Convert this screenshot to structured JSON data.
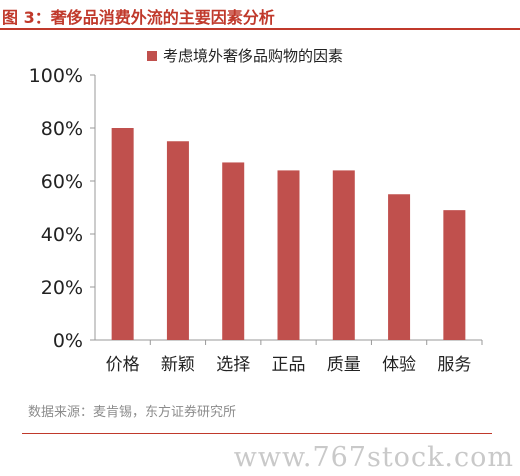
{
  "header": {
    "title": "图 3：奢侈品消费外流的主要因素分析"
  },
  "footer": {
    "source": "数据来源：麦肯锡，东方证券研究所",
    "watermark": "www.767stock.com"
  },
  "colors": {
    "accent": "#c0392b",
    "bar": "#c0504d"
  },
  "chart_data": {
    "type": "bar",
    "categories": [
      "价格",
      "新颖",
      "选择",
      "正品",
      "质量",
      "体验",
      "服务"
    ],
    "series": [
      {
        "name": "考虑境外奢侈品购物的因素",
        "values": [
          0.8,
          0.75,
          0.67,
          0.64,
          0.64,
          0.55,
          0.49
        ]
      }
    ],
    "yticks": [
      "0%",
      "20%",
      "40%",
      "60%",
      "80%",
      "100%"
    ],
    "ylim": [
      0,
      1
    ],
    "legend_position": "top-center",
    "grid": false
  }
}
